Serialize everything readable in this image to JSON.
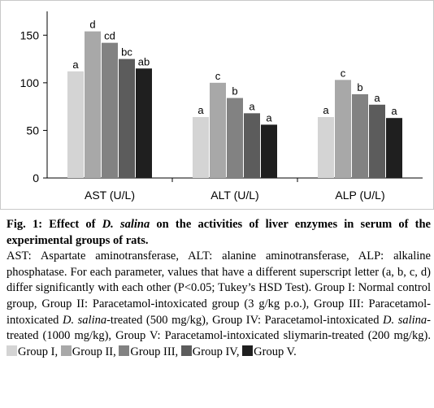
{
  "chart_data": {
    "type": "bar",
    "categories": [
      "AST (U/L)",
      "ALT (U/L)",
      "ALP (U/L)"
    ],
    "ylim": [
      0,
      175
    ],
    "yticks": [
      0,
      50,
      100,
      150
    ],
    "grid": false,
    "series": [
      {
        "name": "Group I",
        "color": "#d4d4d4",
        "values": [
          112,
          64,
          64
        ],
        "letters": [
          "a",
          "a",
          "a"
        ]
      },
      {
        "name": "Group II",
        "color": "#a8a8a8",
        "values": [
          154,
          100,
          103
        ],
        "letters": [
          "d",
          "c",
          "c"
        ]
      },
      {
        "name": "Group III",
        "color": "#828282",
        "values": [
          142,
          84,
          88
        ],
        "letters": [
          "cd",
          "b",
          "b"
        ]
      },
      {
        "name": "Group IV",
        "color": "#5c5c5c",
        "values": [
          125,
          68,
          77
        ],
        "letters": [
          "bc",
          "a",
          "a"
        ]
      },
      {
        "name": "Group V",
        "color": "#1f1f1f",
        "values": [
          115,
          56,
          63
        ],
        "letters": [
          "ab",
          "a",
          "a"
        ]
      }
    ]
  },
  "caption": {
    "fig_label": "Fig. 1:",
    "title_pre": " Effect of ",
    "title_species": "D. salina",
    "title_post": " on the activities of liver enzymes in serum of the experimental groups of rats.",
    "abbrev": "AST: Aspartate aminotransferase, ALT: alanine aminotransferase, ALP: alkaline phosphatase.  For each parameter, values that have a different superscript letter (a, b, c, d) differ significantly with each other (P<0.05; Tukey’s HSD Test).  Group I: Normal control group, Group II: Paracetamol-intoxicated group (3 g/kg p.o.), Group III: Paracetamol-intoxicated ",
    "species_2": "D. salina",
    "g3_tail": "-treated (500 mg/kg), Group IV: Paracetamol-intoxicated ",
    "species_3": "D. salina",
    "g4_tail": "-treated (1000 mg/kg), Group V: Paracetamol-intoxicated sliymarin-treated (200 mg/kg).",
    "legend": [
      {
        "label": "Group I,",
        "color": "#d4d4d4"
      },
      {
        "label": "Group II,",
        "color": "#a8a8a8"
      },
      {
        "label": "Group III,",
        "color": "#828282"
      },
      {
        "label": "Group IV,",
        "color": "#5c5c5c"
      },
      {
        "label": "Group V.",
        "color": "#1f1f1f"
      }
    ]
  }
}
